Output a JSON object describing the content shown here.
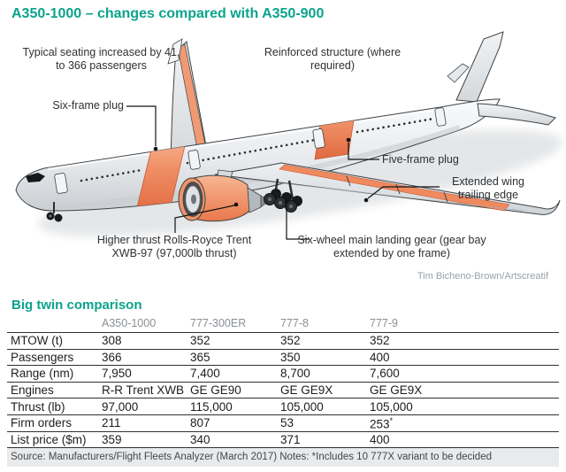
{
  "title": "A350-1000 – changes compared with A350-900",
  "colors": {
    "accent_teal": "#0ba38c",
    "highlight_orange": "#ef8a5f",
    "source_bar": "#e9eaeb"
  },
  "diagram": {
    "labels": {
      "seating": "Typical seating increased by 41, to 366 passengers",
      "reinforced": "Reinforced structure (where required)",
      "six_frame": "Six-frame plug",
      "five_frame": "Five-frame plug",
      "extended_wing": "Extended wing trailing edge",
      "engine": "Higher thrust Rolls-Royce Trent XWB-97 (97,000lb thrust)",
      "landing_gear": "Six-wheel main landing gear (gear bay extended by one frame)"
    },
    "credit": "Tim Bicheno-Brown/Artscreatif"
  },
  "comparison": {
    "heading": "Big twin comparison",
    "columns": [
      "A350-1000",
      "777-300ER",
      "777-8",
      "777-9"
    ],
    "rows": [
      {
        "label": "MTOW (t)",
        "values": [
          "308",
          "352",
          "352",
          "352"
        ]
      },
      {
        "label": "Passengers",
        "values": [
          "366",
          "365",
          "350",
          "400"
        ]
      },
      {
        "label": "Range (nm)",
        "values": [
          "7,950",
          "7,400",
          "8,700",
          "7,600"
        ]
      },
      {
        "label": "Engines",
        "values": [
          "R-R Trent XWB",
          "GE GE90",
          "GE GE9X",
          "GE GE9X"
        ]
      },
      {
        "label": "Thrust (lb)",
        "values": [
          "97,000",
          "115,000",
          "105,000",
          "105,000"
        ]
      },
      {
        "label": "Firm orders",
        "values": [
          "211",
          "807",
          "53",
          "253*"
        ]
      },
      {
        "label": "List price ($m)",
        "values": [
          "359",
          "340",
          "371",
          "400"
        ]
      }
    ],
    "source": "Source: Manufacturers/Flight Fleets Analyzer (March 2017)  Notes: *Includes 10 777X variant to be decided"
  },
  "chart_data": {
    "type": "table",
    "columns": [
      "A350-1000",
      "777-300ER",
      "777-8",
      "777-9"
    ],
    "rows": {
      "MTOW (t)": [
        308,
        352,
        352,
        352
      ],
      "Passengers": [
        366,
        365,
        350,
        400
      ],
      "Range (nm)": [
        7950,
        7400,
        8700,
        7600
      ],
      "Engines": [
        "R-R Trent XWB",
        "GE GE90",
        "GE GE9X",
        "GE GE9X"
      ],
      "Thrust (lb)": [
        97000,
        115000,
        105000,
        105000
      ],
      "Firm orders": [
        211,
        807,
        53,
        253
      ],
      "List price ($m)": [
        359,
        340,
        371,
        400
      ]
    },
    "title": "Big twin comparison"
  }
}
